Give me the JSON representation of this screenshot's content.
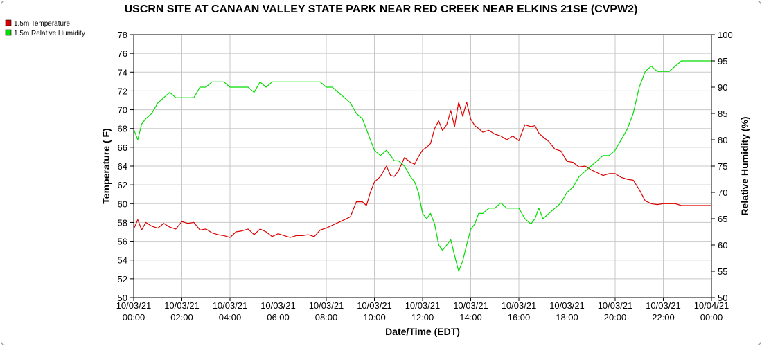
{
  "chart_data": {
    "type": "line",
    "title": "USCRN SITE AT CANAAN VALLEY STATE PARK NEAR RED CREEK NEAR ELKINS 21SE (CVPW2)",
    "xlabel": "Date/Time (EDT)",
    "ylabel_left": "Temperature ( F)",
    "ylabel_right": "Relative Humidity (%)",
    "x_ticks": [
      {
        "date": "10/03/21",
        "time": "00:00",
        "hour": 0
      },
      {
        "date": "10/03/21",
        "time": "02:00",
        "hour": 2
      },
      {
        "date": "10/03/21",
        "time": "04:00",
        "hour": 4
      },
      {
        "date": "10/03/21",
        "time": "06:00",
        "hour": 6
      },
      {
        "date": "10/03/21",
        "time": "08:00",
        "hour": 8
      },
      {
        "date": "10/03/21",
        "time": "10:00",
        "hour": 10
      },
      {
        "date": "10/03/21",
        "time": "12:00",
        "hour": 12
      },
      {
        "date": "10/03/21",
        "time": "14:00",
        "hour": 14
      },
      {
        "date": "10/03/21",
        "time": "16:00",
        "hour": 16
      },
      {
        "date": "10/03/21",
        "time": "18:00",
        "hour": 18
      },
      {
        "date": "10/03/21",
        "time": "20:00",
        "hour": 20
      },
      {
        "date": "10/03/21",
        "time": "22:00",
        "hour": 22
      },
      {
        "date": "10/04/21",
        "time": "00:00",
        "hour": 24
      }
    ],
    "xlim": [
      0,
      24
    ],
    "ylim_left": [
      50,
      78
    ],
    "ylim_right": [
      50,
      100
    ],
    "y_ticks_left": [
      50,
      52,
      54,
      56,
      58,
      60,
      62,
      64,
      66,
      68,
      70,
      72,
      74,
      76,
      78
    ],
    "y_ticks_right": [
      50,
      55,
      60,
      65,
      70,
      75,
      80,
      85,
      90,
      95,
      100
    ],
    "grid": true,
    "legend_position": "top-left",
    "series": [
      {
        "name": "1.5m Temperature",
        "axis": "left",
        "color": "#dd0000",
        "x": [
          0,
          0.17,
          0.33,
          0.5,
          0.75,
          1,
          1.25,
          1.5,
          1.75,
          2,
          2.25,
          2.5,
          2.75,
          3,
          3.25,
          3.5,
          3.75,
          4,
          4.25,
          4.5,
          4.75,
          5,
          5.25,
          5.5,
          5.75,
          6,
          6.25,
          6.5,
          6.75,
          7,
          7.25,
          7.5,
          7.75,
          8,
          8.25,
          8.5,
          8.75,
          9,
          9.25,
          9.5,
          9.67,
          9.83,
          10,
          10.25,
          10.5,
          10.67,
          10.83,
          11,
          11.25,
          11.5,
          11.67,
          11.83,
          12,
          12.17,
          12.33,
          12.5,
          12.67,
          12.83,
          13,
          13.17,
          13.33,
          13.5,
          13.67,
          13.83,
          14,
          14.17,
          14.33,
          14.5,
          14.75,
          15,
          15.25,
          15.5,
          15.75,
          16,
          16.25,
          16.5,
          16.67,
          16.83,
          17,
          17.25,
          17.5,
          17.75,
          18,
          18.25,
          18.5,
          18.75,
          19,
          19.25,
          19.5,
          19.75,
          20,
          20.25,
          20.5,
          20.75,
          21,
          21.25,
          21.5,
          21.75,
          22,
          22.25,
          22.5,
          22.75,
          23,
          23.25,
          23.5,
          23.75,
          24
        ],
        "y": [
          57.3,
          58.3,
          57.2,
          58.0,
          57.6,
          57.4,
          57.9,
          57.5,
          57.3,
          58.1,
          57.9,
          58.0,
          57.2,
          57.3,
          56.9,
          56.7,
          56.6,
          56.4,
          57.0,
          57.1,
          57.3,
          56.7,
          57.3,
          57.0,
          56.5,
          56.8,
          56.6,
          56.4,
          56.6,
          56.6,
          56.7,
          56.5,
          57.2,
          57.4,
          57.7,
          58.0,
          58.3,
          58.6,
          60.2,
          60.2,
          59.8,
          61.2,
          62.3,
          62.9,
          64.0,
          63.0,
          62.9,
          63.5,
          64.9,
          64.4,
          64.2,
          65.0,
          65.7,
          66.0,
          66.4,
          68.0,
          68.8,
          67.8,
          68.4,
          69.9,
          68.2,
          70.8,
          69.3,
          70.8,
          69.0,
          68.3,
          68.0,
          67.6,
          67.8,
          67.4,
          67.2,
          66.8,
          67.2,
          66.7,
          68.4,
          68.2,
          68.3,
          67.5,
          67.1,
          66.6,
          65.8,
          65.6,
          64.5,
          64.4,
          63.9,
          64.0,
          63.6,
          63.3,
          63.0,
          63.2,
          63.2,
          62.8,
          62.6,
          62.5,
          61.5,
          60.3,
          60.0,
          59.9,
          60.0,
          60.0,
          60.0,
          59.8,
          59.8,
          59.8,
          59.8,
          59.8,
          59.8
        ]
      },
      {
        "name": "1.5m Relative Humidity",
        "axis": "right",
        "color": "#00dd00",
        "x": [
          0,
          0.17,
          0.33,
          0.5,
          0.75,
          1,
          1.25,
          1.5,
          1.75,
          2,
          2.25,
          2.5,
          2.75,
          3,
          3.25,
          3.5,
          3.75,
          4,
          4.25,
          4.5,
          4.75,
          5,
          5.25,
          5.5,
          5.75,
          6,
          6.25,
          6.5,
          6.75,
          7,
          7.25,
          7.5,
          7.75,
          8,
          8.25,
          8.5,
          8.75,
          9,
          9.25,
          9.5,
          9.67,
          9.83,
          10,
          10.25,
          10.5,
          10.67,
          10.83,
          11,
          11.25,
          11.5,
          11.67,
          11.83,
          12,
          12.17,
          12.33,
          12.5,
          12.67,
          12.83,
          13,
          13.17,
          13.33,
          13.5,
          13.67,
          13.83,
          14,
          14.17,
          14.33,
          14.5,
          14.75,
          15,
          15.25,
          15.5,
          15.75,
          16,
          16.25,
          16.5,
          16.67,
          16.83,
          17,
          17.25,
          17.5,
          17.75,
          18,
          18.25,
          18.5,
          18.75,
          19,
          19.25,
          19.5,
          19.75,
          20,
          20.25,
          20.5,
          20.75,
          21,
          21.25,
          21.5,
          21.75,
          22,
          22.25,
          22.5,
          22.75,
          23,
          23.25,
          23.5,
          23.75,
          24
        ],
        "y": [
          82,
          80,
          83,
          84,
          85,
          87,
          88,
          89,
          88,
          88,
          88,
          88,
          90,
          90,
          91,
          91,
          91,
          90,
          90,
          90,
          90,
          89,
          91,
          90,
          91,
          91,
          91,
          91,
          91,
          91,
          91,
          91,
          91,
          90,
          90,
          89,
          88,
          87,
          85,
          84,
          82,
          80,
          78,
          77,
          78,
          77,
          76,
          76,
          75,
          73,
          72,
          70,
          66,
          65,
          66,
          64,
          60,
          59,
          60,
          61,
          58,
          55,
          57,
          60,
          63,
          64,
          66,
          66,
          67,
          67,
          68,
          67,
          67,
          67,
          65,
          64,
          65,
          67,
          65,
          66,
          67,
          68,
          70,
          71,
          73,
          74,
          75,
          76,
          77,
          77,
          78,
          80,
          82,
          85,
          90,
          93,
          94,
          93,
          93,
          93,
          94,
          95,
          95,
          95,
          95,
          95,
          95
        ]
      }
    ]
  }
}
